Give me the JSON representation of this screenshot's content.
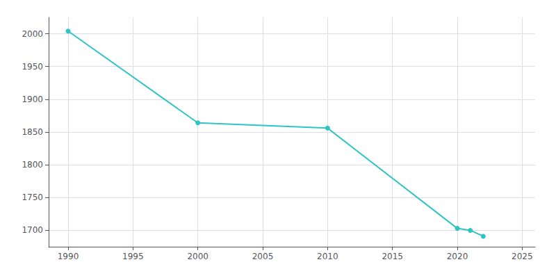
{
  "chart_data": {
    "type": "line",
    "x": [
      1990,
      2000,
      2010,
      2020,
      2021,
      2022
    ],
    "values": [
      2004,
      1864,
      1856,
      1703,
      1700,
      1691
    ],
    "color": "#2ec4c4",
    "marker": "o",
    "xlim": [
      1988.5,
      2026
    ],
    "ylim": [
      1675,
      2025
    ],
    "xticks": [
      1990,
      1995,
      2000,
      2005,
      2010,
      2015,
      2020,
      2025
    ],
    "yticks": [
      1700,
      1750,
      1800,
      1850,
      1900,
      1950,
      2000
    ],
    "grid": true
  }
}
